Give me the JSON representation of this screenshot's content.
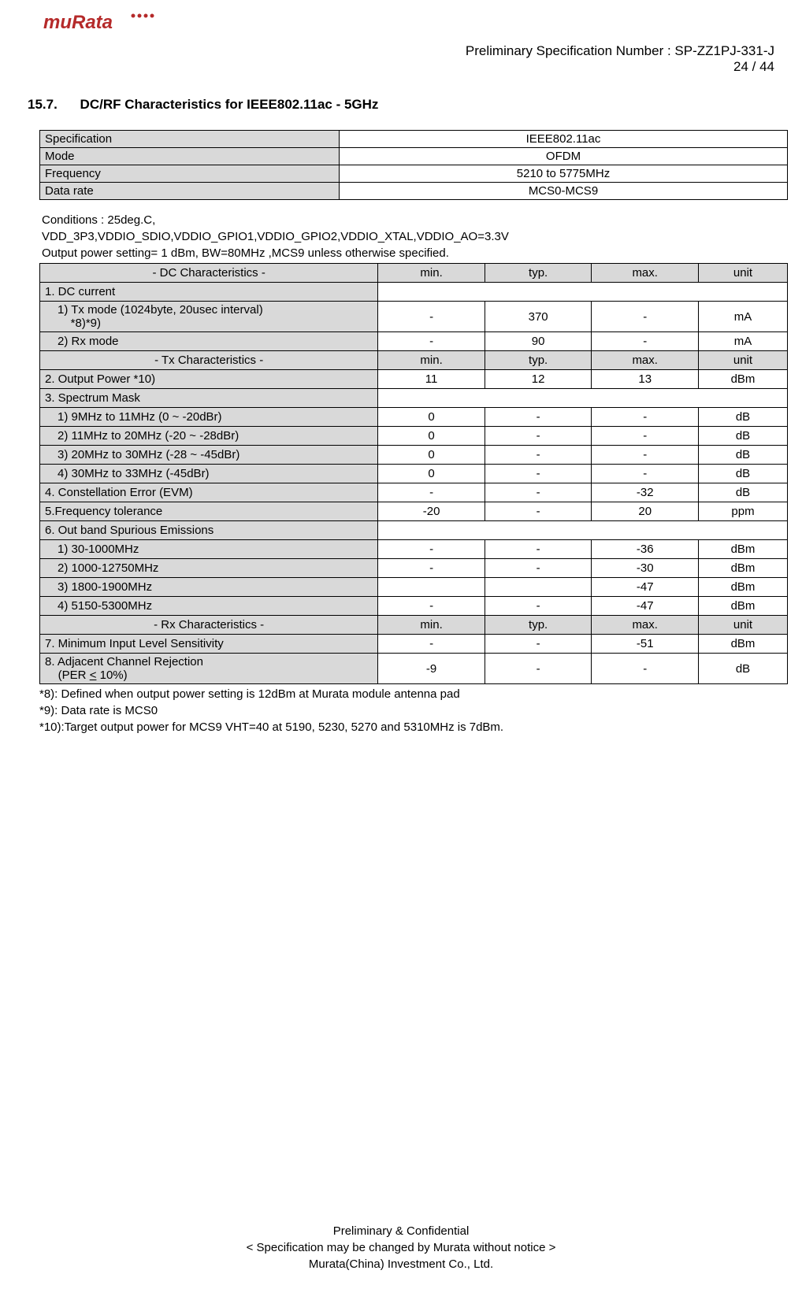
{
  "colors": {
    "gray": "#d9d9d9",
    "border": "#000000",
    "bg": "#ffffff",
    "text": "#000000",
    "logo": "#d03030"
  },
  "header": {
    "spec_line": "Preliminary  Specification  Number  :  SP-ZZ1PJ-331-J",
    "page_line": "24 / 44"
  },
  "section": {
    "number": "15.7.",
    "title": "DC/RF Characteristics for IEEE802.11ac - 5GHz"
  },
  "spec_table": {
    "rows": [
      {
        "k": "Specification",
        "v": "IEEE802.11ac"
      },
      {
        "k": "Mode",
        "v": "OFDM"
      },
      {
        "k": "Frequency",
        "v": "5210 to 5775MHz"
      },
      {
        "k": "Data rate",
        "v": "MCS0-MCS9"
      }
    ]
  },
  "conditions": {
    "l1": "Conditions : 25deg.C,",
    "l2": "VDD_3P3,VDDIO_SDIO,VDDIO_GPIO1,VDDIO_GPIO2,VDDIO_XTAL,VDDIO_AO=3.3V",
    "l3": "Output power setting= 1 dBm, BW=80MHz ,MCS9 unless otherwise specified."
  },
  "char_table": {
    "sections": [
      {
        "header": {
          "label": "- DC Characteristics -",
          "min": "min.",
          "typ": "typ.",
          "max": "max.",
          "unit": "unit"
        },
        "rows": [
          {
            "label": "1. DC current",
            "gray": true,
            "span": true
          },
          {
            "label_html": "1) Tx mode (1024byte, 20usec interval)<br>&nbsp;&nbsp;&nbsp;&nbsp;*8)*9)",
            "indent": 1,
            "min": "-",
            "typ": "370",
            "max": "-",
            "unit": "mA"
          },
          {
            "label": "2) Rx mode",
            "indent": 1,
            "min": "-",
            "typ": "90",
            "max": "-",
            "unit": "mA"
          }
        ]
      },
      {
        "header": {
          "label": "- Tx Characteristics -",
          "min": "min.",
          "typ": "typ.",
          "max": "max.",
          "unit": "unit"
        },
        "rows": [
          {
            "label": "2. Output Power *10)",
            "gray": true,
            "min": "11",
            "typ": "12",
            "max": "13",
            "unit": "dBm"
          },
          {
            "label": "3. Spectrum Mask",
            "gray": true,
            "span": true
          },
          {
            "label": "1) 9MHz to 11MHz (0 ~ -20dBr)",
            "indent": 1,
            "min": "0",
            "typ": "-",
            "max": "-",
            "unit": "dB"
          },
          {
            "label": "2) 11MHz to 20MHz (-20 ~ -28dBr)",
            "indent": 1,
            "min": "0",
            "typ": "-",
            "max": "-",
            "unit": "dB"
          },
          {
            "label": "3) 20MHz to 30MHz (-28 ~ -45dBr)",
            "indent": 1,
            "min": "0",
            "typ": "-",
            "max": "-",
            "unit": "dB"
          },
          {
            "label": "4) 30MHz to 33MHz (-45dBr)",
            "indent": 1,
            "min": "0",
            "typ": "-",
            "max": "-",
            "unit": "dB"
          },
          {
            "label": "4. Constellation Error (EVM)",
            "gray": true,
            "min": "-",
            "typ": "-",
            "max": "-32",
            "unit": "dB"
          },
          {
            "label": "5.Frequency tolerance",
            "gray": true,
            "min": "-20",
            "typ": "-",
            "max": "20",
            "unit": "ppm"
          },
          {
            "label": "6. Out band Spurious Emissions",
            "gray": true,
            "span": true
          },
          {
            "label": "1) 30-1000MHz",
            "indent": 1,
            "min": "-",
            "typ": "-",
            "max": "-36",
            "unit": "dBm"
          },
          {
            "label": "2) 1000-12750MHz",
            "indent": 1,
            "min": "-",
            "typ": "-",
            "max": "-30",
            "unit": "dBm"
          },
          {
            "label": "3) 1800-1900MHz",
            "indent": 1,
            "min": "",
            "typ": "",
            "max": "-47",
            "unit": "dBm"
          },
          {
            "label": "4) 5150-5300MHz",
            "indent": 1,
            "min": "-",
            "typ": "-",
            "max": "-47",
            "unit": "dBm"
          }
        ]
      },
      {
        "header": {
          "label": "- Rx Characteristics -",
          "min": "min.",
          "typ": "typ.",
          "max": "max.",
          "unit": "unit"
        },
        "rows": [
          {
            "label": "7. Minimum Input Level Sensitivity",
            "gray": true,
            "min": "-",
            "typ": "-",
            "max": "-51",
            "unit": "dBm"
          },
          {
            "label_html": "8. Adjacent Channel Rejection<br>&nbsp;&nbsp;&nbsp;&nbsp;(PER <span class=\"under\">&lt;</span> 10%)",
            "gray": true,
            "min": "-9",
            "typ": "-",
            "max": "-",
            "unit": "dB"
          }
        ]
      }
    ]
  },
  "notes": {
    "l1": "*8): Defined when output power setting is 12dBm at Murata module antenna pad",
    "l2": "*9): Data rate is MCS0",
    "l3": "*10):Target output power for MCS9 VHT=40 at 5190, 5230, 5270 and 5310MHz is 7dBm."
  },
  "footer": {
    "l1": "Preliminary & Confidential",
    "l2": "< Specification may be changed by Murata without notice >",
    "l3": "Murata(China) Investment Co., Ltd."
  }
}
